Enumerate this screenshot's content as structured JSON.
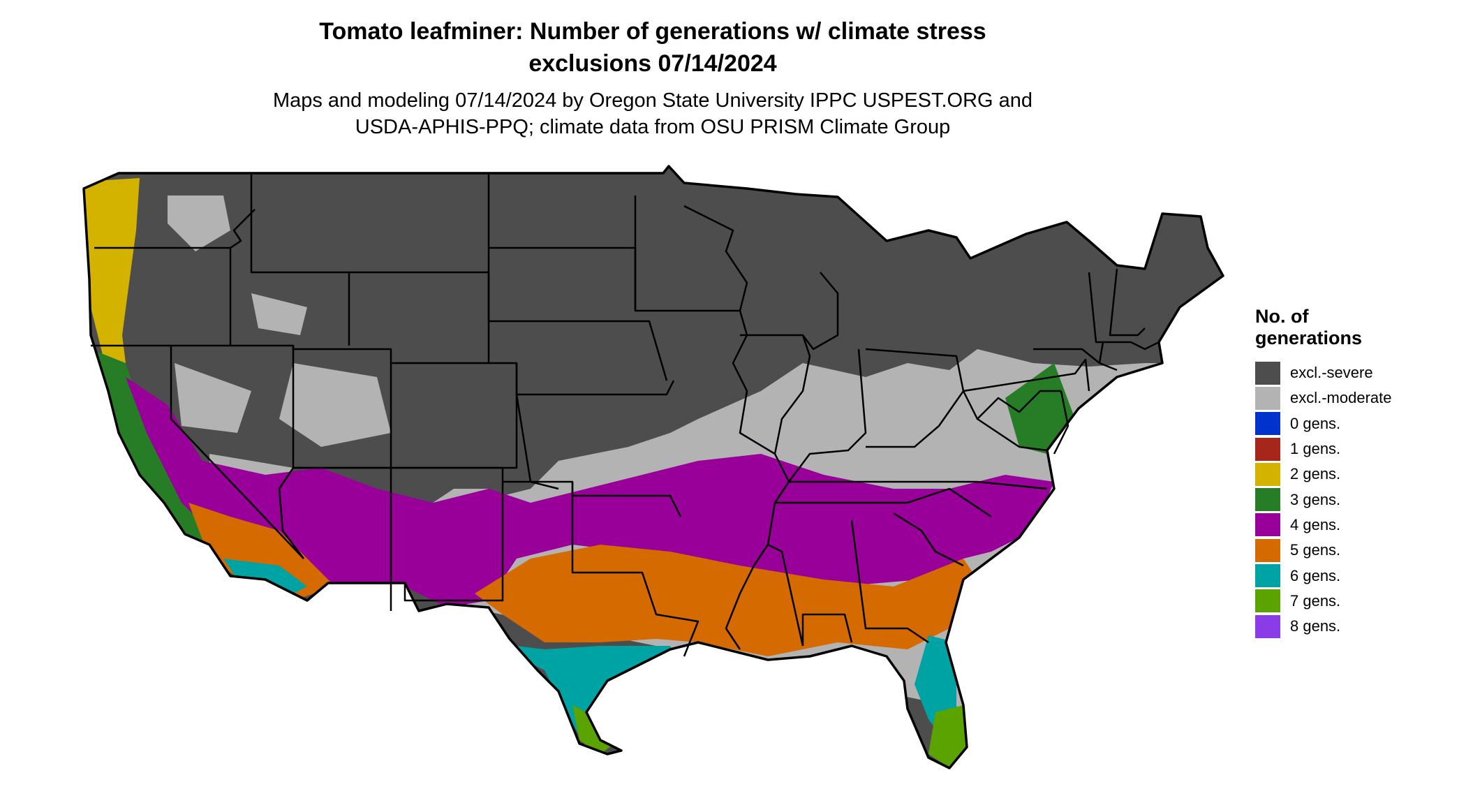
{
  "title": {
    "line1": "Tomato leafminer: Number of generations w/ climate stress",
    "line2": "exclusions 07/14/2024"
  },
  "subtitle": {
    "line1": "Maps and modeling 07/14/2024 by Oregon State University IPPC USPEST.ORG and",
    "line2": "USDA-APHIS-PPQ; climate data from OSU PRISM Climate Group"
  },
  "legend": {
    "title_line1": "No. of",
    "title_line2": "generations",
    "items": [
      {
        "label": "excl.-severe",
        "color": "#4d4d4d"
      },
      {
        "label": "excl.-moderate",
        "color": "#b3b3b3"
      },
      {
        "label": "0 gens.",
        "color": "#0033cc"
      },
      {
        "label": "1 gens.",
        "color": "#a6261a"
      },
      {
        "label": "2 gens.",
        "color": "#d4b300"
      },
      {
        "label": "3 gens.",
        "color": "#267d26"
      },
      {
        "label": "4 gens.",
        "color": "#990099"
      },
      {
        "label": "5 gens.",
        "color": "#d46a00"
      },
      {
        "label": "6 gens.",
        "color": "#00a3a3"
      },
      {
        "label": "7 gens.",
        "color": "#5aa300"
      },
      {
        "label": "8 gens.",
        "color": "#8a3de6"
      }
    ]
  }
}
